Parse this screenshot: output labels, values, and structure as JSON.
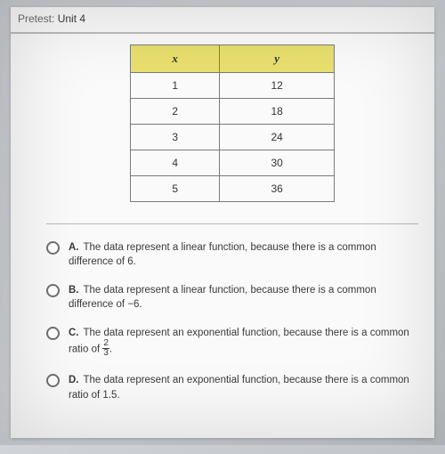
{
  "header": {
    "label": "Pretest:",
    "unit": "Unit 4"
  },
  "table": {
    "header_x": "x",
    "header_y": "y",
    "header_bg": "#e8df6f",
    "border_color": "#7a7a7a",
    "rows": [
      {
        "x": "1",
        "y": "12"
      },
      {
        "x": "2",
        "y": "18"
      },
      {
        "x": "3",
        "y": "24"
      },
      {
        "x": "4",
        "y": "30"
      },
      {
        "x": "5",
        "y": "36"
      }
    ]
  },
  "options": {
    "a": {
      "letter": "A.",
      "text_before": "The data represent a linear function, because there is a common difference of 6."
    },
    "b": {
      "letter": "B.",
      "text_before": "The data represent a linear function, because there is a common difference of −6."
    },
    "c": {
      "letter": "C.",
      "text_before": "The data represent an exponential function, because there is a common ratio of ",
      "frac_num": "2",
      "frac_den": "3",
      "text_after": "."
    },
    "d": {
      "letter": "D.",
      "text_before": "The data represent an exponential function, because there is a common ratio of 1.5."
    }
  },
  "colors": {
    "background": "#fafafa",
    "text": "#3a3a3a",
    "radio_border": "#707070"
  }
}
